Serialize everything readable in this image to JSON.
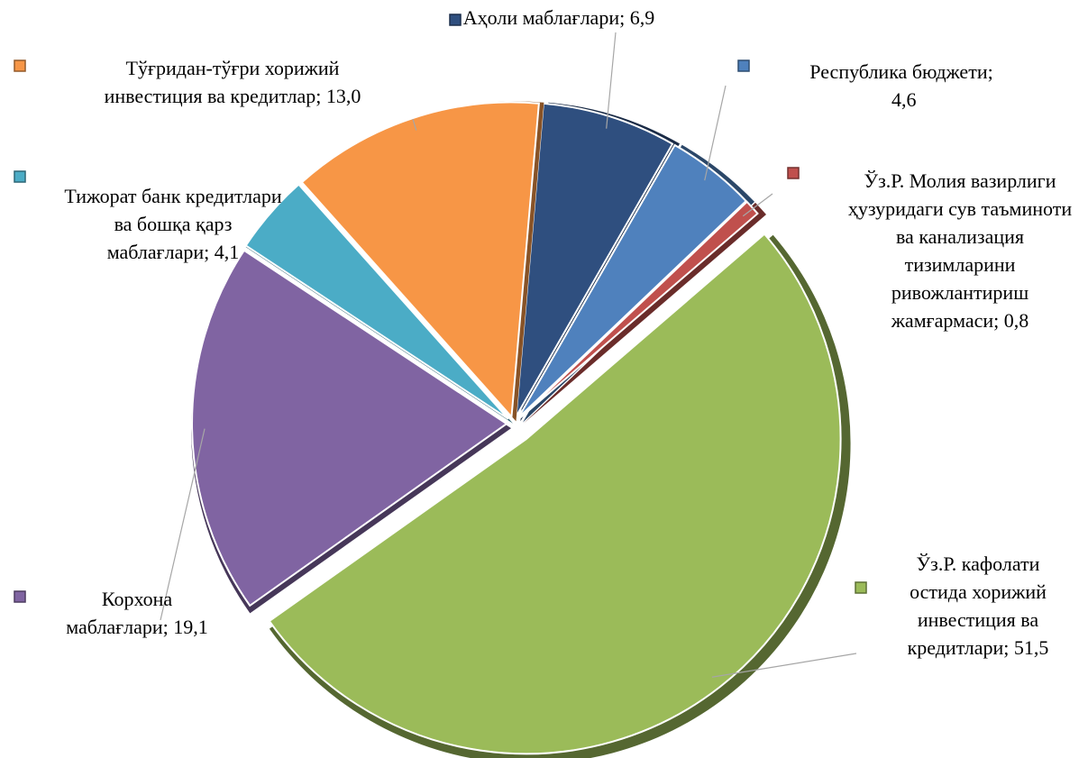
{
  "chart_data": {
    "type": "pie",
    "categories": [
      "Аҳоли маблағлари;",
      "Республика бюджети;",
      "Ўз.Р. Молия вазирлиги ҳузуридаги сув таъминоти ва канализация тизимларини ривожлантириш жамғармаси;",
      "Ўз.Р. кафолати остида хорижий инвестиция ва кредитлари;",
      "Корхона маблағлари;",
      "Тижорат банк кредитлари ва бошқа қарз маблағлари;",
      "Тўғридан-тўғри хорижий инвестиция ва кредитлар;"
    ],
    "values": [
      6.9,
      4.6,
      0.8,
      51.5,
      19.1,
      4.1,
      13.0
    ],
    "value_labels": [
      "6,9",
      "4,6",
      "0,8",
      "51,5",
      "19,1",
      "4,1",
      "13,0"
    ],
    "colors": [
      "#2f4f7f",
      "#4f81bd",
      "#c0504d",
      "#9bbb59",
      "#8064a2",
      "#4bacc6",
      "#f79646"
    ]
  }
}
